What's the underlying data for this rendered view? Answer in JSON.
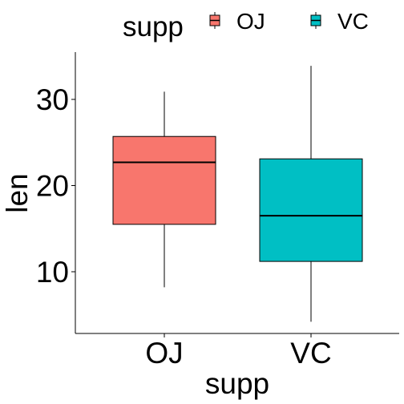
{
  "chart_data": {
    "type": "box",
    "xlabel": "supp",
    "ylabel": "len",
    "categories": [
      "OJ",
      "VC"
    ],
    "ylim": [
      3,
      35
    ],
    "yticks": [
      10,
      20,
      30
    ],
    "grid": false,
    "legend": {
      "title": "supp",
      "position": "top",
      "entries": [
        "OJ",
        "VC"
      ]
    },
    "series": [
      {
        "name": "OJ",
        "color": "#F8766D",
        "min": 8.2,
        "q1": 15.5,
        "median": 22.7,
        "q3": 25.7,
        "max": 30.9
      },
      {
        "name": "VC",
        "color": "#00BFC4",
        "min": 4.2,
        "q1": 11.2,
        "median": 16.5,
        "q3": 23.1,
        "max": 33.9
      }
    ]
  }
}
